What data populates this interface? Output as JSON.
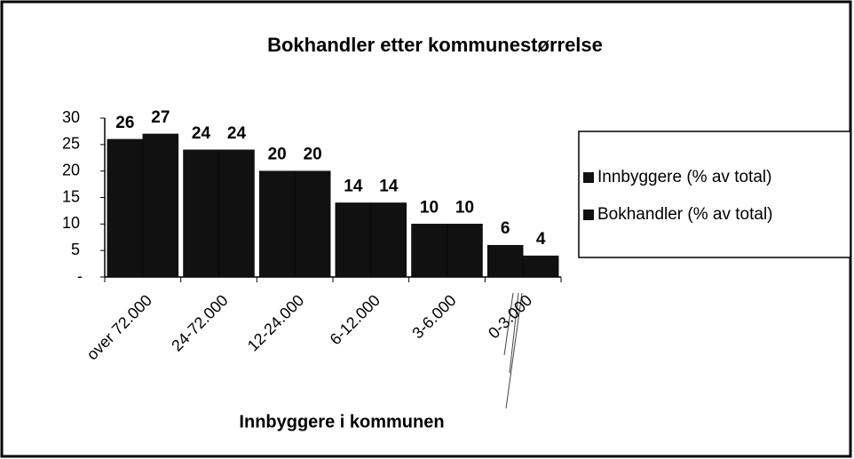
{
  "chart_data": {
    "type": "bar",
    "title": "Bokhandler etter kommunestørrelse",
    "x_label": "Innbyggere i kommunen",
    "categories": [
      "over 72.000",
      "24-72.000",
      "12-24.000",
      "6-12.000",
      "3-6.000",
      "0-3.000"
    ],
    "series": [
      {
        "name": "Innbyggere (% av total)",
        "color": "#111111",
        "values": [
          26,
          24,
          20,
          14,
          10,
          6
        ]
      },
      {
        "name": "Bokhandler (% av total)",
        "color": "#111111",
        "values": [
          27,
          24,
          20,
          14,
          10,
          4
        ]
      }
    ],
    "ylim": [
      0,
      30
    ],
    "yticks": [
      {
        "value": 0,
        "label": "-"
      },
      5,
      10,
      15,
      20,
      25,
      30
    ],
    "grid": false,
    "legend": "right"
  }
}
